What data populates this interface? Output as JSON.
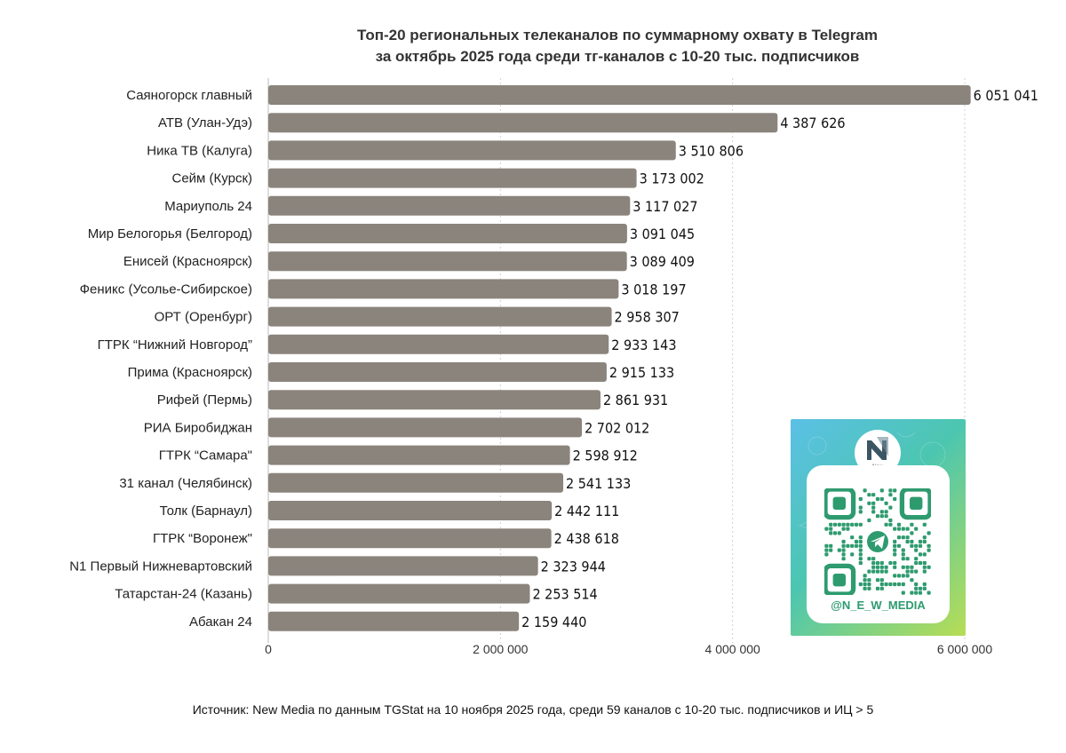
{
  "chart_data": {
    "type": "bar",
    "orientation": "horizontal",
    "title_line1": "Топ-20 региональных телеканалов по суммарному охвату в Telegram",
    "title_line2": "за октябрь 2025 года среди тг-каналов с 10-20 тыс. подписчиков",
    "categories": [
      "Саяногорск главный",
      "АТВ (Улан-Удэ)",
      "Ника ТВ (Калуга)",
      "Сейм (Курск)",
      "Мариуполь 24",
      "Мир Белогорья (Белгород)",
      "Енисей (Красноярск)",
      "Феникс (Усолье-Сибирское)",
      "ОРТ (Оренбург)",
      "ГТРК “Нижний Новгород”",
      "Прима (Красноярск)",
      "Рифей (Пермь)",
      "РИА Биробиджан",
      "ГТРК “Самара\"",
      "31 канал (Челябинск)",
      "Толк (Барнаул)",
      "ГТРК “Воронеж\"",
      "N1 Первый Нижневартовский",
      "Татарстан-24 (Казань)",
      "Абакан 24"
    ],
    "values": [
      6051041,
      4387626,
      3510806,
      3173002,
      3117027,
      3091045,
      3089409,
      3018197,
      2958307,
      2933143,
      2915133,
      2861931,
      2702012,
      2598912,
      2541133,
      2442111,
      2438618,
      2323944,
      2253514,
      2159440
    ],
    "value_labels": [
      "6 051 041",
      "4 387 626",
      "3 510 806",
      "3 173 002",
      "3 117 027",
      "3 091 045",
      "3 089 409",
      "3 018 197",
      "2 958 307",
      "2 933 143",
      "2 915 133",
      "2 861 931",
      "2 702 012",
      "2 598 912",
      "2 541 133",
      "2 442 111",
      "2 438 618",
      "2 323 944",
      "2 253 514",
      "2 159 440"
    ],
    "xlim": [
      0,
      6000000
    ],
    "xticks": [
      0,
      2000000,
      4000000,
      6000000
    ],
    "xtick_labels": [
      "0",
      "2 000 000",
      "4 000 000",
      "6 000 000"
    ],
    "grid": "vertical dotted",
    "bar_color": "#8a847c"
  },
  "source_text": "Источник: New Media по данным TGStat на 10 ноября 2025 года, среди 59 каналов с 10-20 тыс. подписчиков и ИЦ > 5",
  "qr_card": {
    "logo_text": "New Media",
    "handle": "@N_E_W_MEDIA",
    "icon": "telegram-icon"
  }
}
